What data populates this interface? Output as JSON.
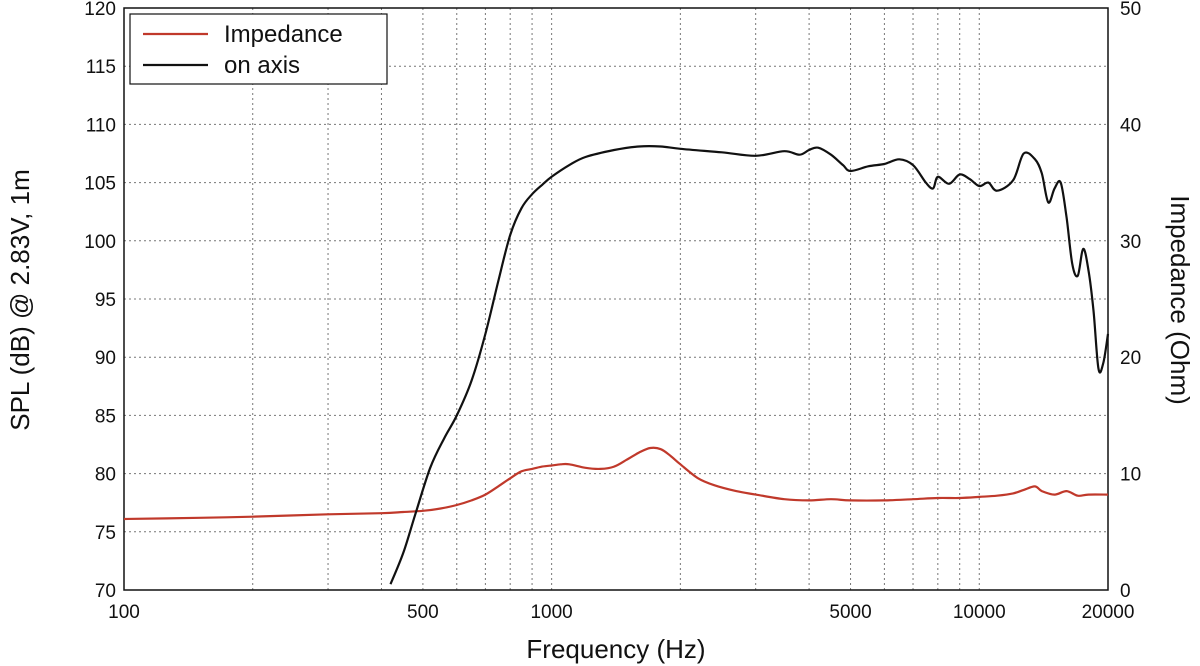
{
  "chart_data": {
    "type": "line",
    "xlabel": "Frequency (Hz)",
    "ylabel": "SPL (dB) @ 2.83V, 1m",
    "y2label": "Impedance (Ohm)",
    "xscale": "log",
    "xlim": [
      100,
      20000
    ],
    "ylim": [
      70,
      120
    ],
    "y2lim": [
      0,
      50
    ],
    "grid": true,
    "legend_position": "top-left",
    "x_tick_labels": [
      "100",
      "500",
      "1000",
      "5000",
      "10000",
      "20000"
    ],
    "x_tick_values": [
      100,
      500,
      1000,
      5000,
      10000,
      20000
    ],
    "y_tick_labels": [
      "70",
      "75",
      "80",
      "85",
      "90",
      "95",
      "100",
      "105",
      "110",
      "115",
      "120"
    ],
    "y2_tick_labels": [
      "0",
      "10",
      "20",
      "30",
      "40",
      "50"
    ],
    "series": [
      {
        "name": "Impedance",
        "axis": "right",
        "color": "#c0392b",
        "x": [
          100,
          150,
          200,
          300,
          400,
          450,
          500,
          550,
          600,
          650,
          700,
          750,
          800,
          850,
          900,
          950,
          1000,
          1050,
          1100,
          1200,
          1300,
          1400,
          1500,
          1600,
          1700,
          1800,
          1900,
          2000,
          2200,
          2400,
          2700,
          3000,
          3500,
          4000,
          4500,
          5000,
          6000,
          7000,
          8000,
          9000,
          10000,
          11000,
          12000,
          12700,
          13500,
          14000,
          15000,
          16000,
          17000,
          18000,
          20000
        ],
        "y": [
          6.1,
          6.2,
          6.3,
          6.5,
          6.6,
          6.7,
          6.8,
          7.0,
          7.3,
          7.7,
          8.2,
          8.9,
          9.6,
          10.2,
          10.4,
          10.6,
          10.7,
          10.8,
          10.8,
          10.5,
          10.4,
          10.6,
          11.2,
          11.8,
          12.2,
          12.1,
          11.5,
          10.8,
          9.6,
          9.0,
          8.5,
          8.2,
          7.8,
          7.7,
          7.8,
          7.7,
          7.7,
          7.8,
          7.9,
          7.9,
          8.0,
          8.1,
          8.3,
          8.6,
          8.9,
          8.5,
          8.2,
          8.5,
          8.1,
          8.2,
          8.2
        ]
      },
      {
        "name": "on axis",
        "axis": "left",
        "color": "#111111",
        "x": [
          420,
          450,
          480,
          520,
          560,
          600,
          650,
          700,
          750,
          800,
          850,
          900,
          950,
          1000,
          1100,
          1200,
          1400,
          1600,
          1800,
          2000,
          2500,
          3000,
          3500,
          3800,
          4000,
          4200,
          4500,
          4800,
          5000,
          5500,
          6000,
          6500,
          7000,
          7500,
          7800,
          8000,
          8500,
          9000,
          9500,
          10000,
          10500,
          11000,
          12000,
          12700,
          13500,
          14000,
          14500,
          15000,
          15500,
          16000,
          16500,
          17000,
          17500,
          18000,
          18500,
          19000,
          19500,
          20000
        ],
        "y": [
          70.5,
          73.2,
          76.5,
          80.5,
          83.0,
          85.0,
          88.0,
          92.0,
          96.5,
          100.5,
          102.8,
          104.0,
          104.8,
          105.5,
          106.5,
          107.2,
          107.8,
          108.1,
          108.1,
          107.9,
          107.6,
          107.3,
          107.7,
          107.4,
          107.8,
          108.0,
          107.4,
          106.5,
          106.0,
          106.4,
          106.6,
          107.0,
          106.5,
          105.0,
          104.5,
          105.5,
          104.9,
          105.7,
          105.3,
          104.7,
          105.0,
          104.3,
          105.2,
          107.5,
          107.0,
          105.8,
          103.3,
          104.5,
          105.0,
          102.0,
          98.0,
          97.0,
          99.3,
          97.5,
          94.0,
          89.0,
          89.5,
          92.0
        ]
      }
    ]
  }
}
